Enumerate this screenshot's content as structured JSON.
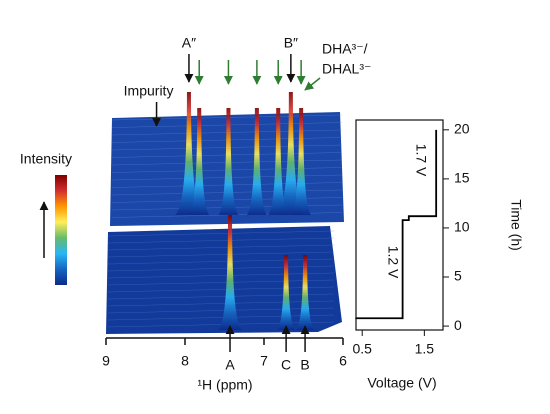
{
  "chart_data": [
    {
      "type": "waterfall",
      "xlabel": "¹H (ppm)",
      "xlim": [
        9,
        6
      ],
      "xticks": [
        9,
        8,
        7,
        6
      ],
      "colorbar_label": "Intensity",
      "colormap": [
        "#0d2a8a",
        "#1565c0",
        "#29b6f6",
        "#66bb6a",
        "#ffee58",
        "#ff9800",
        "#d32f2f",
        "#7f0000"
      ],
      "top_labels": [
        {
          "text": "A″",
          "x": 7.95
        },
        {
          "text": "B″",
          "x": 6.66
        },
        {
          "text": "Impurity",
          "x": 8.36
        }
      ],
      "bottom_labels": [
        {
          "text": "A",
          "x": 7.43
        },
        {
          "text": "C",
          "x": 6.72
        },
        {
          "text": "B",
          "x": 6.48
        }
      ],
      "green_arrows": [
        7.82,
        7.45,
        7.09,
        6.82,
        6.53
      ],
      "green_label": [
        "DHA³⁻/",
        "DHAL³⁻"
      ],
      "green_color": "#2e7d32"
    },
    {
      "type": "line",
      "xlabel": "Voltage (V)",
      "ylabel": "Time (h)",
      "x": [
        0.39,
        1.15,
        1.15,
        1.25,
        1.25,
        1.69,
        1.69
      ],
      "values": [
        0.8,
        0.8,
        10.8,
        10.8,
        11.2,
        11.2,
        20
      ],
      "color": "#000000",
      "xlim": [
        0.4,
        1.8
      ],
      "xticks": [
        0.5,
        1.5
      ],
      "ylim": [
        -0.4,
        21
      ],
      "yticks": [
        0,
        5,
        10,
        15,
        20
      ],
      "annotations": [
        "1.2 V",
        "1.7 V"
      ]
    }
  ]
}
